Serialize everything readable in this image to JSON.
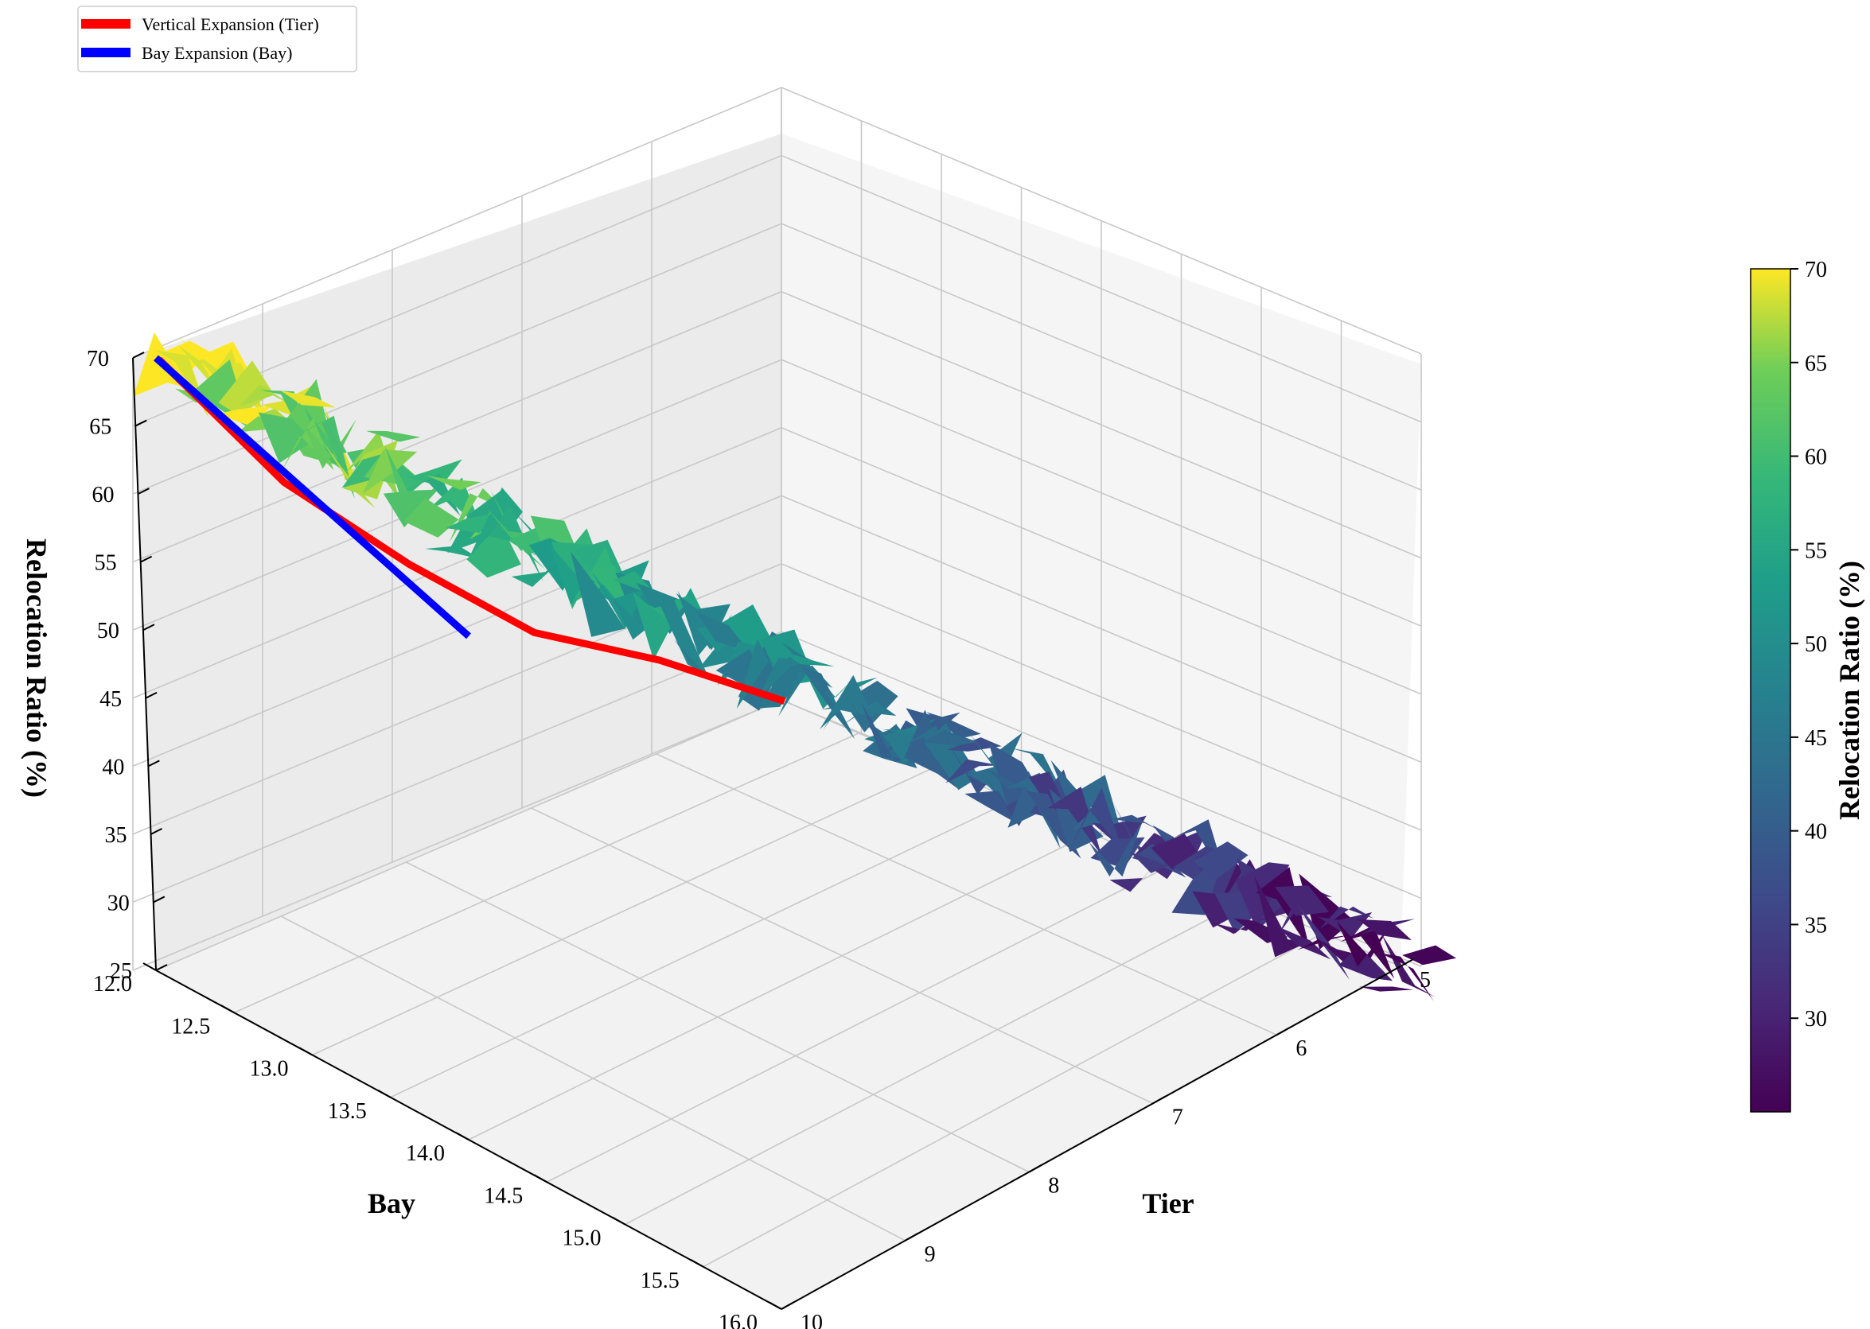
{
  "legend": [
    {
      "label": "Vertical Expansion (Tier)",
      "color": "#ff0000"
    },
    {
      "label": "Bay Expansion (Bay)",
      "color": "#0000ff"
    }
  ],
  "chart_data": {
    "type": "surface3d",
    "title": "",
    "colormap": "viridis",
    "xlabel": "Bay",
    "ylabel": "Tier",
    "zlabel": "Relocation Ratio (%)",
    "x_ticks": [
      "12.0",
      "12.5",
      "13.0",
      "13.5",
      "14.0",
      "14.5",
      "15.0",
      "15.5",
      "16.0"
    ],
    "y_ticks": [
      "5",
      "6",
      "7",
      "8",
      "9",
      "10"
    ],
    "z_ticks": [
      "25",
      "30",
      "35",
      "40",
      "45",
      "50",
      "55",
      "60",
      "65",
      "70"
    ],
    "xlim": [
      12.0,
      16.0
    ],
    "ylim": [
      5,
      10
    ],
    "zlim": [
      25,
      70
    ],
    "grid": true,
    "legend_position": "top-left",
    "colorbar": {
      "label": "Relocation Ratio (%)",
      "min": 25,
      "max": 70,
      "ticks": [
        "30",
        "35",
        "40",
        "45",
        "50",
        "55",
        "60",
        "65",
        "70"
      ]
    },
    "series": [
      {
        "name": "Vertical Expansion (Tier)",
        "x": [
          12.0,
          12.0,
          12.0,
          12.0,
          12.0,
          12.0
        ],
        "y": [
          5,
          6,
          7,
          8,
          9,
          10
        ],
        "z": [
          25,
          32,
          38,
          47,
          57,
          70
        ]
      },
      {
        "name": "Bay Expansion (Bay)",
        "x": [
          12.0,
          12.5,
          13.0,
          13.5,
          14.0
        ],
        "y": [
          10,
          10,
          10,
          10,
          10
        ],
        "z": [
          70,
          68,
          66,
          64,
          62
        ]
      }
    ],
    "surface_trend": {
      "from": {
        "x": 12.0,
        "y": 10,
        "z": 70
      },
      "to": {
        "x": 16.0,
        "y": 5,
        "z": 25
      }
    }
  }
}
